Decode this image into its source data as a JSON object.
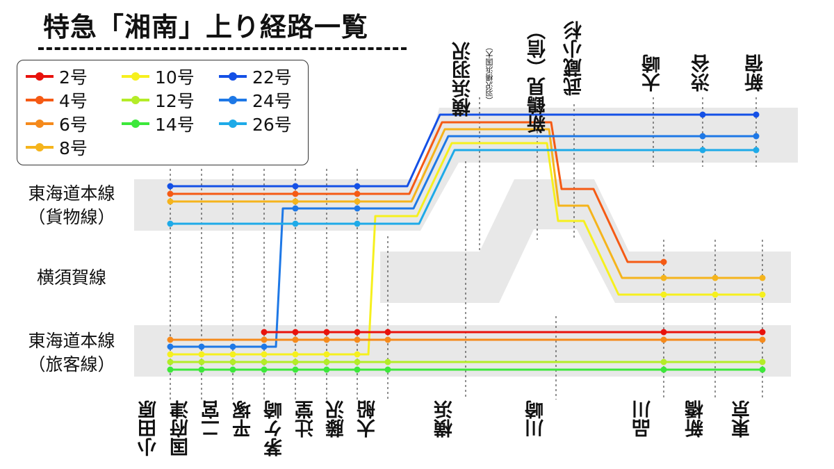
{
  "title": "特急「湘南」上り経路一覧",
  "legend": [
    {
      "label": "2号",
      "color": "#e8120c"
    },
    {
      "label": "4号",
      "color": "#f55a14"
    },
    {
      "label": "6号",
      "color": "#f58a1c"
    },
    {
      "label": "8号",
      "color": "#f5b41c"
    },
    {
      "label": "10号",
      "color": "#f6f01e"
    },
    {
      "label": "12号",
      "color": "#b4ec28"
    },
    {
      "label": "14号",
      "color": "#3ce83a"
    },
    {
      "label": "22号",
      "color": "#1450e6"
    },
    {
      "label": "24号",
      "color": "#1e78e6"
    },
    {
      "label": "26号",
      "color": "#1eaae8"
    }
  ],
  "line_labels": {
    "freight": "東海道本線\n（貨物線）",
    "yokosuka": "横須賀線",
    "passenger": "東海道本線\n（旅客線）"
  },
  "stations_bottom": [
    "小田原",
    "国府津",
    "二宮",
    "平塚",
    "茅ケ崎",
    "辻堂",
    "藤沢",
    "大船",
    "横浜",
    "川崎",
    "品川",
    "新橋",
    "東京"
  ],
  "stations_top": [
    {
      "name": "横浜羽沢",
      "note": "（羽沢横浜国大）"
    },
    {
      "name": "新鶴見（信）"
    },
    {
      "name": "武蔵小杉"
    },
    {
      "name": "大崎"
    },
    {
      "name": "渋谷"
    },
    {
      "name": "新宿"
    }
  ],
  "colors": {
    "band": "#e8e8e8",
    "dotted": "#222222"
  }
}
